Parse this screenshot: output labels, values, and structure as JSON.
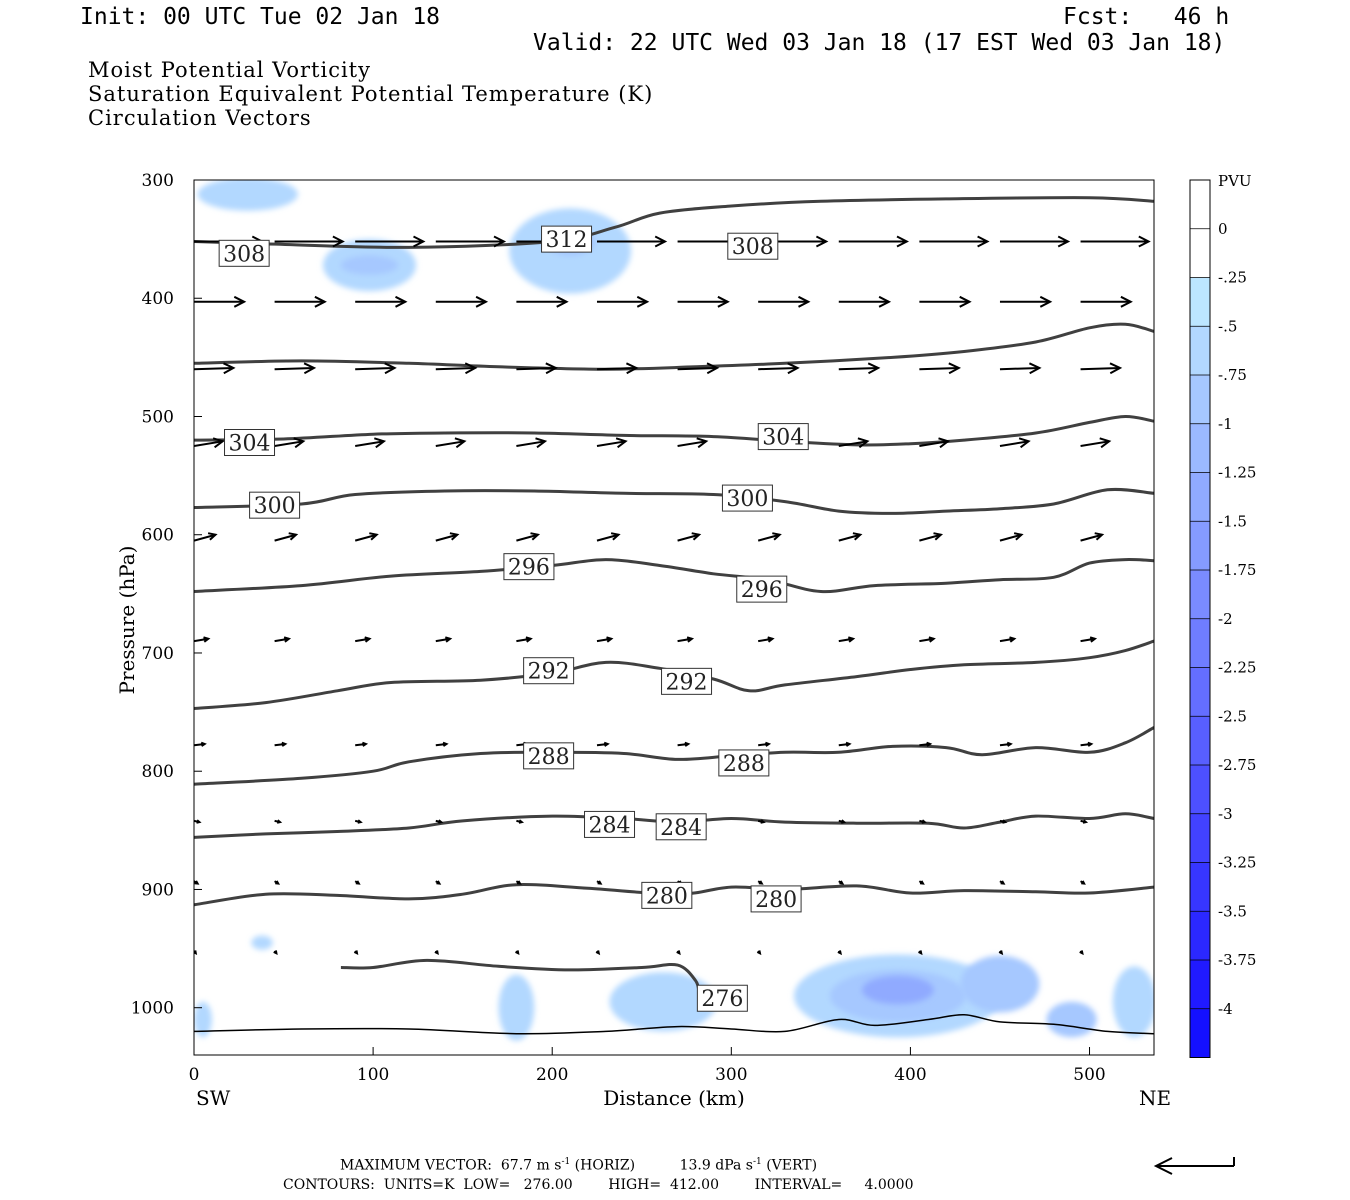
{
  "header": {
    "init": "Init: 00 UTC Tue 02 Jan 18",
    "fcst": "Fcst:   46 h",
    "valid": "Valid: 22 UTC Wed 03 Jan 18 (17 EST Wed 03 Jan 18)",
    "fields": [
      {
        "label": "Moist Potential Vorticity",
        "color": "#000000"
      },
      {
        "label": "Saturation Equivalent Potential Temperature (K)",
        "color": "#707070"
      },
      {
        "label": "Circulation Vectors",
        "color": "#000000"
      }
    ]
  },
  "footer": {
    "max_vector_label": "MAXIMUM VECTOR:",
    "horiz_value": "67.7 m s",
    "horiz_exp": "-1",
    "horiz_tag": "(HORIZ)",
    "vert_value": "13.9 dPa s",
    "vert_exp": "-1",
    "vert_tag": "(VERT)",
    "contours_line": "CONTOURS:  UNITS=K  LOW=   276.00        HIGH=  412.00        INTERVAL=     4.0000"
  },
  "chart_data": {
    "type": "line",
    "xlabel": "Distance (km)",
    "ylabel": "Pressure (hPa)",
    "xlim": [
      0,
      536
    ],
    "ylim": [
      300,
      1040
    ],
    "y_inverted": true,
    "x_ticks": [
      0,
      100,
      200,
      300,
      400,
      500
    ],
    "y_ticks": [
      300,
      400,
      500,
      600,
      700,
      800,
      900,
      1000
    ],
    "x_end_labels": {
      "left": "SW",
      "right": "NE"
    },
    "contour_color": "#404040",
    "contours": [
      {
        "value": "312",
        "points": [
          [
            0,
            352
          ],
          [
            40,
            354
          ],
          [
            120,
            357
          ],
          [
            200,
            352
          ],
          [
            235,
            340
          ],
          [
            260,
            328
          ],
          [
            300,
            322
          ],
          [
            350,
            318
          ],
          [
            420,
            316
          ],
          [
            500,
            315
          ],
          [
            536,
            318
          ]
        ]
      },
      {
        "value": "308",
        "points": [
          [
            0,
            455
          ],
          [
            60,
            453
          ],
          [
            120,
            455
          ],
          [
            170,
            458
          ],
          [
            230,
            460
          ],
          [
            280,
            458
          ],
          [
            330,
            455
          ],
          [
            390,
            450
          ],
          [
            430,
            445
          ],
          [
            470,
            437
          ],
          [
            500,
            425
          ],
          [
            520,
            422
          ],
          [
            536,
            428
          ]
        ]
      },
      {
        "value": "304",
        "points": [
          [
            0,
            520
          ],
          [
            50,
            519
          ],
          [
            100,
            515
          ],
          [
            140,
            514
          ],
          [
            190,
            514
          ],
          [
            240,
            516
          ],
          [
            290,
            517
          ],
          [
            330,
            521
          ],
          [
            370,
            524
          ],
          [
            400,
            523
          ],
          [
            430,
            520
          ],
          [
            470,
            514
          ],
          [
            500,
            505
          ],
          [
            520,
            500
          ],
          [
            536,
            504
          ]
        ]
      },
      {
        "value": "300",
        "points": [
          [
            0,
            577
          ],
          [
            60,
            574
          ],
          [
            90,
            566
          ],
          [
            140,
            563
          ],
          [
            190,
            563
          ],
          [
            240,
            565
          ],
          [
            290,
            566
          ],
          [
            330,
            572
          ],
          [
            360,
            580
          ],
          [
            390,
            582
          ],
          [
            420,
            580
          ],
          [
            450,
            578
          ],
          [
            480,
            574
          ],
          [
            510,
            562
          ],
          [
            536,
            565
          ]
        ]
      },
      {
        "value": "296",
        "points": [
          [
            0,
            648
          ],
          [
            60,
            643
          ],
          [
            110,
            635
          ],
          [
            160,
            631
          ],
          [
            200,
            626
          ],
          [
            230,
            621
          ],
          [
            260,
            626
          ],
          [
            290,
            633
          ],
          [
            320,
            638
          ],
          [
            350,
            648
          ],
          [
            380,
            643
          ],
          [
            420,
            641
          ],
          [
            450,
            638
          ],
          [
            480,
            636
          ],
          [
            500,
            624
          ],
          [
            520,
            621
          ],
          [
            536,
            622
          ]
        ]
      },
      {
        "value": "292",
        "points": [
          [
            0,
            747
          ],
          [
            40,
            742
          ],
          [
            80,
            732
          ],
          [
            110,
            725
          ],
          [
            160,
            723
          ],
          [
            200,
            717
          ],
          [
            230,
            708
          ],
          [
            260,
            713
          ],
          [
            290,
            722
          ],
          [
            310,
            732
          ],
          [
            330,
            727
          ],
          [
            370,
            720
          ],
          [
            400,
            714
          ],
          [
            430,
            710
          ],
          [
            470,
            708
          ],
          [
            500,
            704
          ],
          [
            520,
            698
          ],
          [
            536,
            690
          ]
        ]
      },
      {
        "value": "288",
        "points": [
          [
            0,
            811
          ],
          [
            60,
            806
          ],
          [
            100,
            800
          ],
          [
            120,
            792
          ],
          [
            160,
            785
          ],
          [
            200,
            784
          ],
          [
            240,
            785
          ],
          [
            270,
            790
          ],
          [
            300,
            787
          ],
          [
            330,
            784
          ],
          [
            360,
            784
          ],
          [
            390,
            779
          ],
          [
            420,
            780
          ],
          [
            440,
            786
          ],
          [
            470,
            780
          ],
          [
            500,
            784
          ],
          [
            520,
            776
          ],
          [
            536,
            763
          ]
        ]
      },
      {
        "value": "284",
        "points": [
          [
            0,
            856
          ],
          [
            40,
            853
          ],
          [
            80,
            851
          ],
          [
            120,
            848
          ],
          [
            150,
            842
          ],
          [
            200,
            838
          ],
          [
            240,
            840
          ],
          [
            270,
            843
          ],
          [
            300,
            840
          ],
          [
            330,
            843
          ],
          [
            370,
            844
          ],
          [
            410,
            844
          ],
          [
            430,
            848
          ],
          [
            450,
            843
          ],
          [
            470,
            838
          ],
          [
            500,
            840
          ],
          [
            520,
            836
          ],
          [
            536,
            840
          ]
        ]
      },
      {
        "value": "280",
        "points": [
          [
            0,
            913
          ],
          [
            40,
            904
          ],
          [
            80,
            905
          ],
          [
            120,
            908
          ],
          [
            150,
            904
          ],
          [
            180,
            896
          ],
          [
            220,
            899
          ],
          [
            270,
            904
          ],
          [
            300,
            898
          ],
          [
            330,
            900
          ],
          [
            370,
            897
          ],
          [
            400,
            903
          ],
          [
            430,
            901
          ],
          [
            470,
            902
          ],
          [
            500,
            903
          ],
          [
            536,
            898
          ]
        ]
      },
      {
        "value": "276",
        "points": [
          [
            82,
            966
          ],
          [
            100,
            966
          ],
          [
            130,
            960
          ],
          [
            170,
            965
          ],
          [
            210,
            968
          ],
          [
            250,
            966
          ],
          [
            270,
            964
          ],
          [
            280,
            977
          ],
          [
            282,
            988
          ]
        ]
      }
    ],
    "contour_labels": [
      {
        "value": "312",
        "x": 208,
        "y": 350
      },
      {
        "value": "308",
        "x": 28,
        "y": 362
      },
      {
        "value": "308",
        "x": 312,
        "y": 356
      },
      {
        "value": "304",
        "x": 31,
        "y": 522
      },
      {
        "value": "304",
        "x": 329,
        "y": 517
      },
      {
        "value": "300",
        "x": 45,
        "y": 575
      },
      {
        "value": "300",
        "x": 309,
        "y": 569
      },
      {
        "value": "296",
        "x": 187,
        "y": 627
      },
      {
        "value": "296",
        "x": 317,
        "y": 646
      },
      {
        "value": "292",
        "x": 198,
        "y": 715
      },
      {
        "value": "292",
        "x": 275,
        "y": 724
      },
      {
        "value": "288",
        "x": 198,
        "y": 787
      },
      {
        "value": "288",
        "x": 307,
        "y": 793
      },
      {
        "value": "284",
        "x": 232,
        "y": 845
      },
      {
        "value": "284",
        "x": 272,
        "y": 847
      },
      {
        "value": "280",
        "x": 264,
        "y": 905
      },
      {
        "value": "280",
        "x": 325,
        "y": 908
      },
      {
        "value": "276",
        "x": 295,
        "y": 992
      }
    ],
    "vector_rows": [
      {
        "p": 352,
        "len_km": 38,
        "dy_hpa": 0
      },
      {
        "p": 403,
        "len_km": 28,
        "dy_hpa": 0
      },
      {
        "p": 460,
        "len_km": 22,
        "dy_hpa": -1
      },
      {
        "p": 525,
        "len_km": 16,
        "dy_hpa": -4
      },
      {
        "p": 605,
        "len_km": 12,
        "dy_hpa": -5
      },
      {
        "p": 690,
        "len_km": 8,
        "dy_hpa": -2
      },
      {
        "p": 778,
        "len_km": 6,
        "dy_hpa": -1
      },
      {
        "p": 842,
        "len_km": 3,
        "dy_hpa": 1
      },
      {
        "p": 893,
        "len_km": 2,
        "dy_hpa": 2
      },
      {
        "p": 952,
        "len_km": 1,
        "dy_hpa": 2
      }
    ],
    "vector_x_positions": [
      0,
      45,
      90,
      135,
      180,
      225,
      270,
      315,
      360,
      405,
      450,
      495
    ],
    "mpv_shading": [
      {
        "x": 30,
        "p": 312,
        "rx": 28,
        "rp": 14,
        "pvu": -0.3
      },
      {
        "x": 98,
        "p": 372,
        "rx": 26,
        "rp": 22,
        "pvu": -0.4
      },
      {
        "x": 98,
        "p": 372,
        "rx": 16,
        "rp": 8,
        "pvu": -0.6
      },
      {
        "x": 210,
        "p": 360,
        "rx": 34,
        "rp": 36,
        "pvu": -0.4
      },
      {
        "x": 210,
        "p": 352,
        "rx": 14,
        "rp": 12,
        "pvu": -0.7
      },
      {
        "x": 38,
        "p": 945,
        "rx": 6,
        "rp": 6,
        "pvu": -0.3
      },
      {
        "x": 180,
        "p": 1000,
        "rx": 10,
        "rp": 28,
        "pvu": -0.3
      },
      {
        "x": 262,
        "p": 995,
        "rx": 30,
        "rp": 25,
        "pvu": -0.3
      },
      {
        "x": 393,
        "p": 990,
        "rx": 58,
        "rp": 35,
        "pvu": -0.35
      },
      {
        "x": 393,
        "p": 990,
        "rx": 38,
        "rp": 22,
        "pvu": -0.7
      },
      {
        "x": 393,
        "p": 985,
        "rx": 20,
        "rp": 12,
        "pvu": -1.0
      },
      {
        "x": 450,
        "p": 980,
        "rx": 22,
        "rp": 24,
        "pvu": -0.5
      },
      {
        "x": 490,
        "p": 1010,
        "rx": 14,
        "rp": 15,
        "pvu": -0.5
      },
      {
        "x": 525,
        "p": 995,
        "rx": 12,
        "rp": 30,
        "pvu": -0.3
      },
      {
        "x": 5,
        "p": 1010,
        "rx": 5,
        "rp": 15,
        "pvu": -0.3
      }
    ],
    "surface": [
      [
        0,
        1020
      ],
      [
        60,
        1018
      ],
      [
        120,
        1018
      ],
      [
        180,
        1022
      ],
      [
        230,
        1020
      ],
      [
        270,
        1016
      ],
      [
        300,
        1018
      ],
      [
        330,
        1020
      ],
      [
        360,
        1010
      ],
      [
        380,
        1015
      ],
      [
        410,
        1010
      ],
      [
        430,
        1006
      ],
      [
        450,
        1012
      ],
      [
        480,
        1014
      ],
      [
        510,
        1020
      ],
      [
        536,
        1022
      ]
    ],
    "colorbar": {
      "title": "PVU",
      "labels": [
        "0",
        "-.25",
        "-.5",
        "-.75",
        "-1",
        "-1.25",
        "-1.5",
        "-1.75",
        "-2",
        "-2.25",
        "-2.5",
        "-2.75",
        "-3",
        "-3.25",
        "-3.5",
        "-3.75",
        "-4"
      ],
      "colors": [
        "#ffffff",
        "#ffffff",
        "#bce6ff",
        "#b2d8ff",
        "#a6c8ff",
        "#9bb9ff",
        "#90aaff",
        "#859bff",
        "#7a8bff",
        "#6f7dff",
        "#646eff",
        "#585fff",
        "#4d50ff",
        "#4242ff",
        "#3736ff",
        "#2b28ff",
        "#201aff",
        "#1410ff"
      ]
    }
  }
}
